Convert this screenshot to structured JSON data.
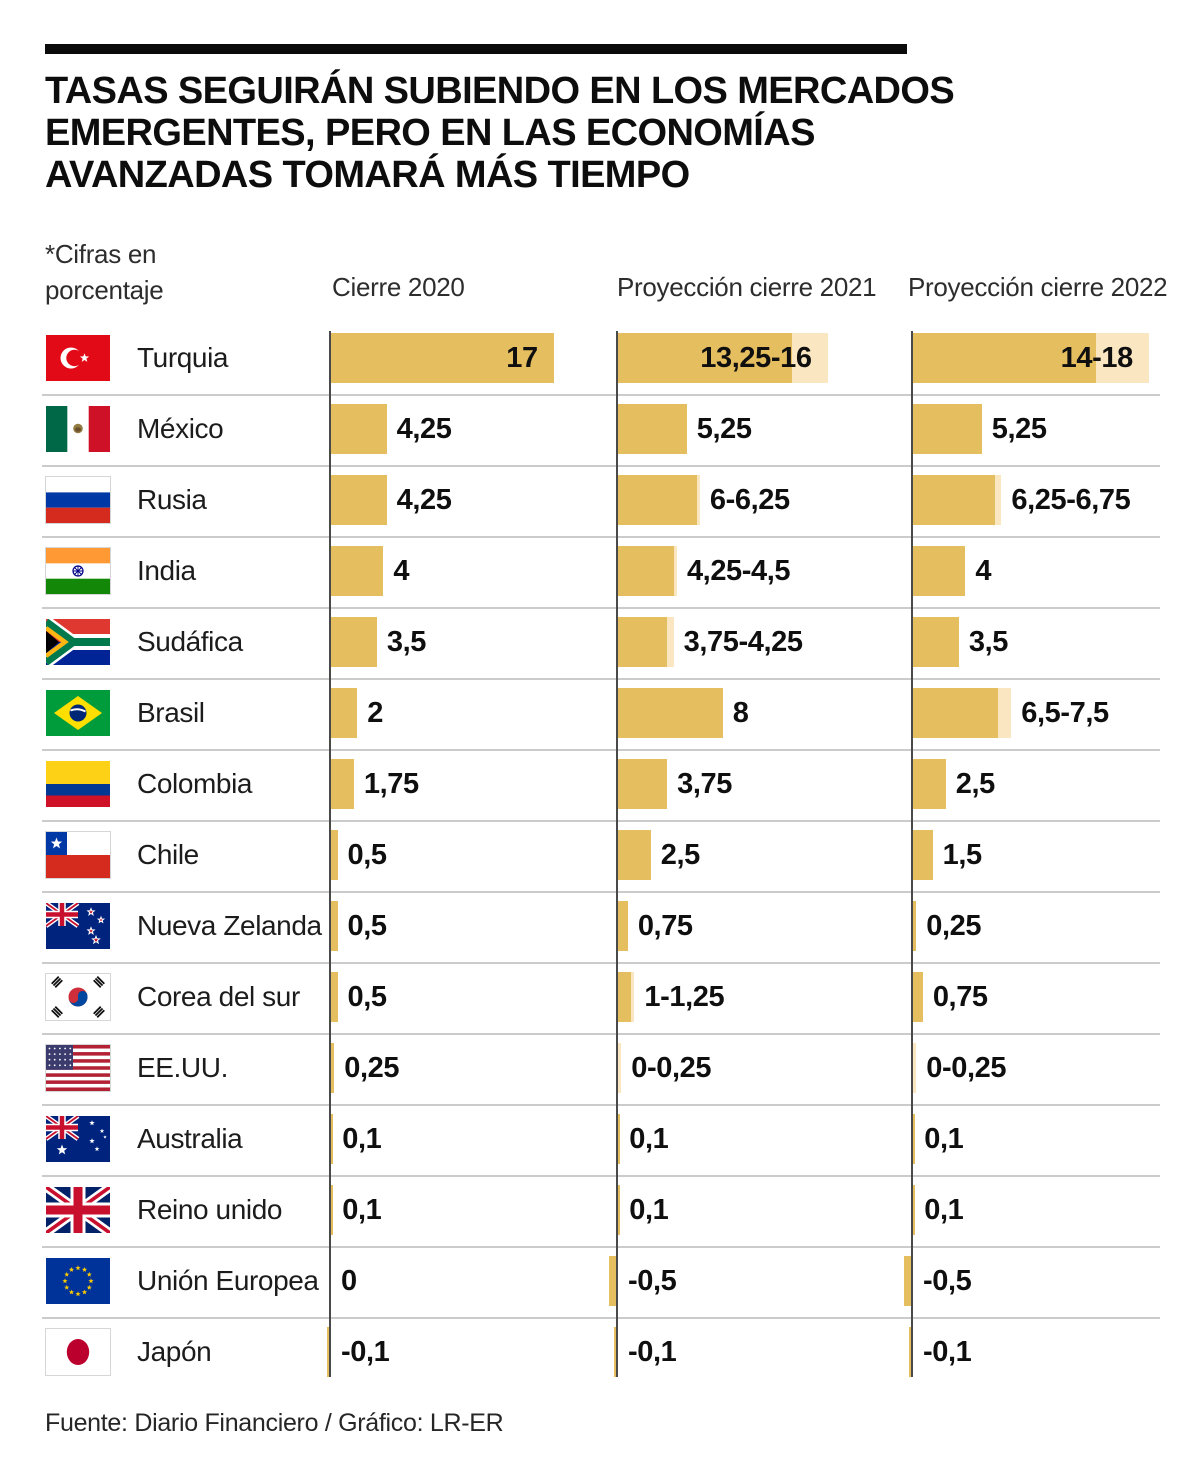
{
  "header": {
    "title": "TASAS SEGUIRÁN SUBIENDO EN LOS MERCADOS\nEMERGENTES, PERO EN LAS ECONOMÍAS\nAVANZADAS TOMARÁ MÁS TIEMPO",
    "units_note": "*Cifras en\nporcentaje"
  },
  "footer": {
    "source": "Fuente: Diario Financiero / Gráfico: LR-ER"
  },
  "chart_data": {
    "type": "bar",
    "orientation": "horizontal",
    "unit": "percent",
    "value_range": [
      -0.5,
      18
    ],
    "grid": "off",
    "columns": [
      "Cierre 2020",
      "Proyección cierre 2021",
      "Proyección cierre 2022"
    ],
    "colors": {
      "bar": "#E5BE5F",
      "range_extension": "#FAE7C1",
      "axis": "#4a4a4a",
      "divider": "#cbcbcb"
    },
    "rows": [
      {
        "country": "Turquia",
        "flag": "turkey",
        "values": [
          {
            "label": "17",
            "lo": 17,
            "hi": 17
          },
          {
            "label": "13,25-16",
            "lo": 13.25,
            "hi": 16
          },
          {
            "label": "14-18",
            "lo": 14,
            "hi": 18
          }
        ]
      },
      {
        "country": "México",
        "flag": "mexico",
        "values": [
          {
            "label": "4,25",
            "lo": 4.25,
            "hi": 4.25
          },
          {
            "label": "5,25",
            "lo": 5.25,
            "hi": 5.25
          },
          {
            "label": "5,25",
            "lo": 5.25,
            "hi": 5.25
          }
        ]
      },
      {
        "country": "Rusia",
        "flag": "russia",
        "values": [
          {
            "label": "4,25",
            "lo": 4.25,
            "hi": 4.25
          },
          {
            "label": "6-6,25",
            "lo": 6,
            "hi": 6.25
          },
          {
            "label": "6,25-6,75",
            "lo": 6.25,
            "hi": 6.75
          }
        ]
      },
      {
        "country": "India",
        "flag": "india",
        "values": [
          {
            "label": "4",
            "lo": 4,
            "hi": 4
          },
          {
            "label": "4,25-4,5",
            "lo": 4.25,
            "hi": 4.5
          },
          {
            "label": "4",
            "lo": 4,
            "hi": 4
          }
        ]
      },
      {
        "country": "Sudáfica",
        "flag": "southafrica",
        "values": [
          {
            "label": "3,5",
            "lo": 3.5,
            "hi": 3.5
          },
          {
            "label": "3,75-4,25",
            "lo": 3.75,
            "hi": 4.25
          },
          {
            "label": "3,5",
            "lo": 3.5,
            "hi": 3.5
          }
        ]
      },
      {
        "country": "Brasil",
        "flag": "brazil",
        "values": [
          {
            "label": "2",
            "lo": 2,
            "hi": 2
          },
          {
            "label": "8",
            "lo": 8,
            "hi": 8
          },
          {
            "label": "6,5-7,5",
            "lo": 6.5,
            "hi": 7.5
          }
        ]
      },
      {
        "country": "Colombia",
        "flag": "colombia",
        "values": [
          {
            "label": "1,75",
            "lo": 1.75,
            "hi": 1.75
          },
          {
            "label": "3,75",
            "lo": 3.75,
            "hi": 3.75
          },
          {
            "label": "2,5",
            "lo": 2.5,
            "hi": 2.5
          }
        ]
      },
      {
        "country": "Chile",
        "flag": "chile",
        "values": [
          {
            "label": "0,5",
            "lo": 0.5,
            "hi": 0.5
          },
          {
            "label": "2,5",
            "lo": 2.5,
            "hi": 2.5
          },
          {
            "label": "1,5",
            "lo": 1.5,
            "hi": 1.5
          }
        ]
      },
      {
        "country": "Nueva Zelanda",
        "flag": "newzealand",
        "values": [
          {
            "label": "0,5",
            "lo": 0.5,
            "hi": 0.5
          },
          {
            "label": "0,75",
            "lo": 0.75,
            "hi": 0.75
          },
          {
            "label": "0,25",
            "lo": 0.25,
            "hi": 0.25
          }
        ]
      },
      {
        "country": "Corea del sur",
        "flag": "southkorea",
        "values": [
          {
            "label": "0,5",
            "lo": 0.5,
            "hi": 0.5
          },
          {
            "label": "1-1,25",
            "lo": 1,
            "hi": 1.25
          },
          {
            "label": "0,75",
            "lo": 0.75,
            "hi": 0.75
          }
        ]
      },
      {
        "country": "EE.UU.",
        "flag": "usa",
        "values": [
          {
            "label": "0,25",
            "lo": 0.25,
            "hi": 0.25
          },
          {
            "label": "0-0,25",
            "lo": 0,
            "hi": 0.25
          },
          {
            "label": "0-0,25",
            "lo": 0,
            "hi": 0.25
          }
        ]
      },
      {
        "country": "Australia",
        "flag": "australia",
        "values": [
          {
            "label": "0,1",
            "lo": 0.1,
            "hi": 0.1
          },
          {
            "label": "0,1",
            "lo": 0.1,
            "hi": 0.1
          },
          {
            "label": "0,1",
            "lo": 0.1,
            "hi": 0.1
          }
        ]
      },
      {
        "country": "Reino unido",
        "flag": "uk",
        "values": [
          {
            "label": "0,1",
            "lo": 0.1,
            "hi": 0.1
          },
          {
            "label": "0,1",
            "lo": 0.1,
            "hi": 0.1
          },
          {
            "label": "0,1",
            "lo": 0.1,
            "hi": 0.1
          }
        ]
      },
      {
        "country": "Unión Europea",
        "flag": "eu",
        "values": [
          {
            "label": "0",
            "lo": 0,
            "hi": 0
          },
          {
            "label": "-0,5",
            "lo": -0.5,
            "hi": -0.5
          },
          {
            "label": "-0,5",
            "lo": -0.5,
            "hi": -0.5
          }
        ]
      },
      {
        "country": "Japón",
        "flag": "japan",
        "values": [
          {
            "label": "-0,1",
            "lo": -0.1,
            "hi": -0.1
          },
          {
            "label": "-0,1",
            "lo": -0.1,
            "hi": -0.1
          },
          {
            "label": "-0,1",
            "lo": -0.1,
            "hi": -0.1
          }
        ]
      }
    ]
  }
}
